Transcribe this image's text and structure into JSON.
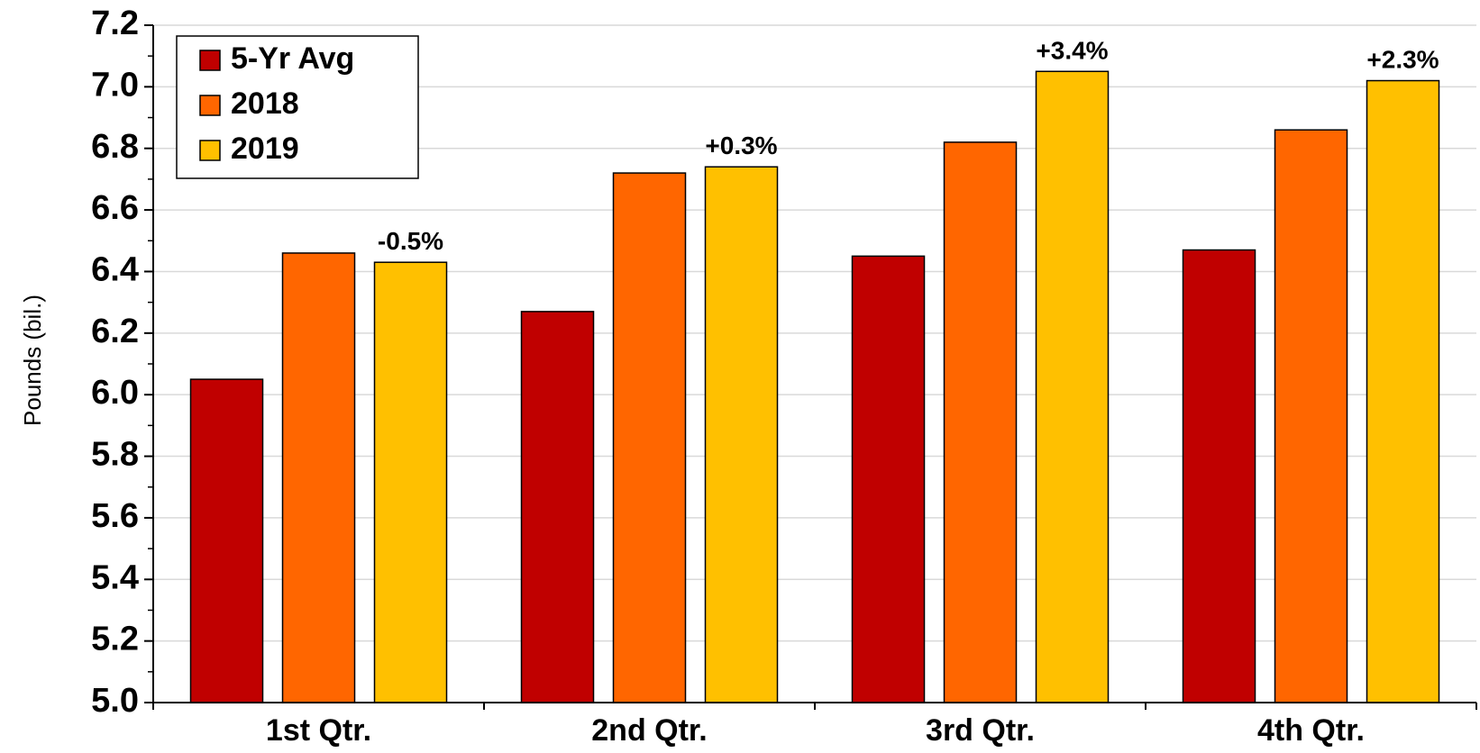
{
  "chart_data": {
    "type": "bar",
    "ylabel": "Pounds (bil.)",
    "ylim": [
      5.0,
      7.2
    ],
    "ytick_step": 0.2,
    "ytick_labels": [
      "5.0",
      "5.2",
      "5.4",
      "5.6",
      "5.8",
      "6.0",
      "6.2",
      "6.4",
      "6.6",
      "6.8",
      "7.0",
      "7.2"
    ],
    "grid": true,
    "legend_position": "top-left",
    "categories": [
      "1st Qtr.",
      "2nd Qtr.",
      "3rd Qtr.",
      "4th Qtr."
    ],
    "series": [
      {
        "name": "5-Yr Avg",
        "color": "#c00000",
        "values": [
          6.05,
          6.27,
          6.45,
          6.47
        ]
      },
      {
        "name": "2018",
        "color": "#ff6600",
        "values": [
          6.46,
          6.72,
          6.82,
          6.86
        ]
      },
      {
        "name": "2019",
        "color": "#ffc000",
        "values": [
          6.43,
          6.74,
          7.05,
          7.02
        ]
      }
    ],
    "annotations": [
      "-0.5%",
      "+0.3%",
      "+3.4%",
      "+2.3%"
    ]
  }
}
